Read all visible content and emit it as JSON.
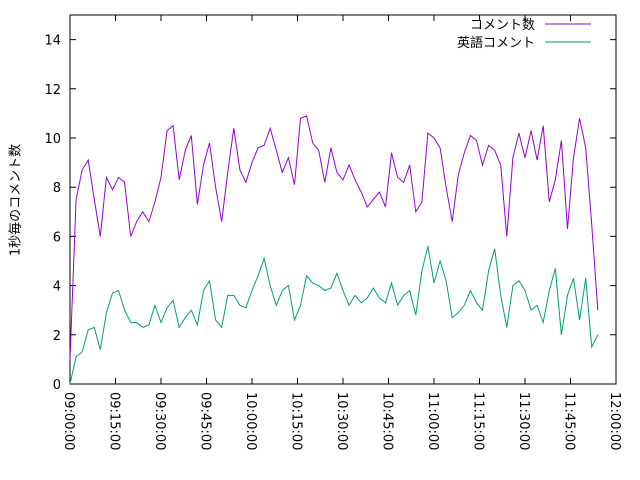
{
  "chart_data": {
    "type": "line",
    "ylabel": "1秒毎のコメント数",
    "x": [
      "09:00:00",
      "09:02:00",
      "09:04:00",
      "09:06:00",
      "09:08:00",
      "09:10:00",
      "09:12:00",
      "09:14:00",
      "09:16:00",
      "09:18:00",
      "09:20:00",
      "09:22:00",
      "09:24:00",
      "09:26:00",
      "09:28:00",
      "09:30:00",
      "09:32:00",
      "09:34:00",
      "09:36:00",
      "09:38:00",
      "09:40:00",
      "09:42:00",
      "09:44:00",
      "09:46:00",
      "09:48:00",
      "09:50:00",
      "09:52:00",
      "09:54:00",
      "09:56:00",
      "09:58:00",
      "10:00:00",
      "10:02:00",
      "10:04:00",
      "10:06:00",
      "10:08:00",
      "10:10:00",
      "10:12:00",
      "10:14:00",
      "10:16:00",
      "10:18:00",
      "10:20:00",
      "10:22:00",
      "10:24:00",
      "10:26:00",
      "10:28:00",
      "10:30:00",
      "10:32:00",
      "10:34:00",
      "10:36:00",
      "10:38:00",
      "10:40:00",
      "10:42:00",
      "10:44:00",
      "10:46:00",
      "10:48:00",
      "10:50:00",
      "10:52:00",
      "10:54:00",
      "10:56:00",
      "10:58:00",
      "11:00:00",
      "11:02:00",
      "11:04:00",
      "11:06:00",
      "11:08:00",
      "11:10:00",
      "11:12:00",
      "11:14:00",
      "11:16:00",
      "11:18:00",
      "11:20:00",
      "11:22:00",
      "11:24:00",
      "11:26:00",
      "11:28:00",
      "11:30:00",
      "11:32:00",
      "11:34:00",
      "11:36:00",
      "11:38:00",
      "11:40:00",
      "11:42:00",
      "11:44:00",
      "11:46:00",
      "11:48:00",
      "11:50:00",
      "11:52:00",
      "11:54:00"
    ],
    "series": [
      {
        "name": "コメント数",
        "color": "#9400d3",
        "values": [
          1.0,
          7.5,
          8.7,
          9.1,
          7.5,
          6.0,
          8.4,
          7.9,
          8.4,
          8.2,
          6.0,
          6.6,
          7.0,
          6.6,
          7.4,
          8.4,
          10.3,
          10.5,
          8.3,
          9.5,
          10.1,
          7.3,
          8.9,
          9.8,
          8.0,
          6.6,
          8.6,
          10.4,
          8.7,
          8.2,
          9.0,
          9.6,
          9.7,
          10.4,
          9.5,
          8.6,
          9.2,
          8.1,
          10.8,
          10.9,
          9.8,
          9.5,
          8.2,
          9.6,
          8.6,
          8.3,
          8.9,
          8.3,
          7.8,
          7.2,
          7.5,
          7.8,
          7.2,
          9.4,
          8.4,
          8.2,
          8.9,
          7.0,
          7.4,
          10.2,
          10.0,
          9.6,
          8.0,
          6.6,
          8.5,
          9.4,
          10.1,
          9.9,
          8.9,
          9.7,
          9.5,
          8.9,
          6.0,
          9.2,
          10.2,
          9.2,
          10.3,
          9.1,
          10.5,
          7.4,
          8.3,
          9.9,
          6.3,
          9.2,
          10.8,
          9.6,
          6.5,
          3.0
        ]
      },
      {
        "name": "英語コメント",
        "color": "#009e73",
        "values": [
          0,
          1.1,
          1.3,
          2.2,
          2.3,
          1.4,
          2.9,
          3.7,
          3.8,
          3.0,
          2.5,
          2.5,
          2.3,
          2.4,
          3.2,
          2.5,
          3.1,
          3.4,
          2.3,
          2.7,
          3.0,
          2.4,
          3.8,
          4.2,
          2.6,
          2.3,
          3.6,
          3.6,
          3.2,
          3.1,
          3.8,
          4.4,
          5.1,
          4.0,
          3.2,
          3.8,
          4.0,
          2.6,
          3.2,
          4.4,
          4.1,
          4.0,
          3.8,
          3.9,
          4.5,
          3.8,
          3.2,
          3.6,
          3.3,
          3.5,
          3.9,
          3.5,
          3.3,
          4.1,
          3.2,
          3.6,
          3.8,
          2.8,
          4.6,
          5.6,
          4.1,
          5.0,
          4.2,
          2.7,
          2.9,
          3.2,
          3.8,
          3.3,
          3.0,
          4.6,
          5.5,
          3.6,
          2.3,
          4.0,
          4.2,
          3.8,
          3.0,
          3.2,
          2.5,
          3.8,
          4.7,
          2.0,
          3.6,
          4.3,
          2.6,
          4.3,
          1.5,
          2.0
        ]
      }
    ],
    "xlim": [
      "09:00:00",
      "12:00:00"
    ],
    "xticks": [
      "09:00:00",
      "09:15:00",
      "09:30:00",
      "09:45:00",
      "10:00:00",
      "10:15:00",
      "10:30:00",
      "10:45:00",
      "11:00:00",
      "11:15:00",
      "11:30:00",
      "11:45:00",
      "12:00:00"
    ],
    "ylim": [
      0,
      15
    ],
    "yticks": [
      0,
      2,
      4,
      6,
      8,
      10,
      12,
      14
    ],
    "legend": "upper right"
  }
}
